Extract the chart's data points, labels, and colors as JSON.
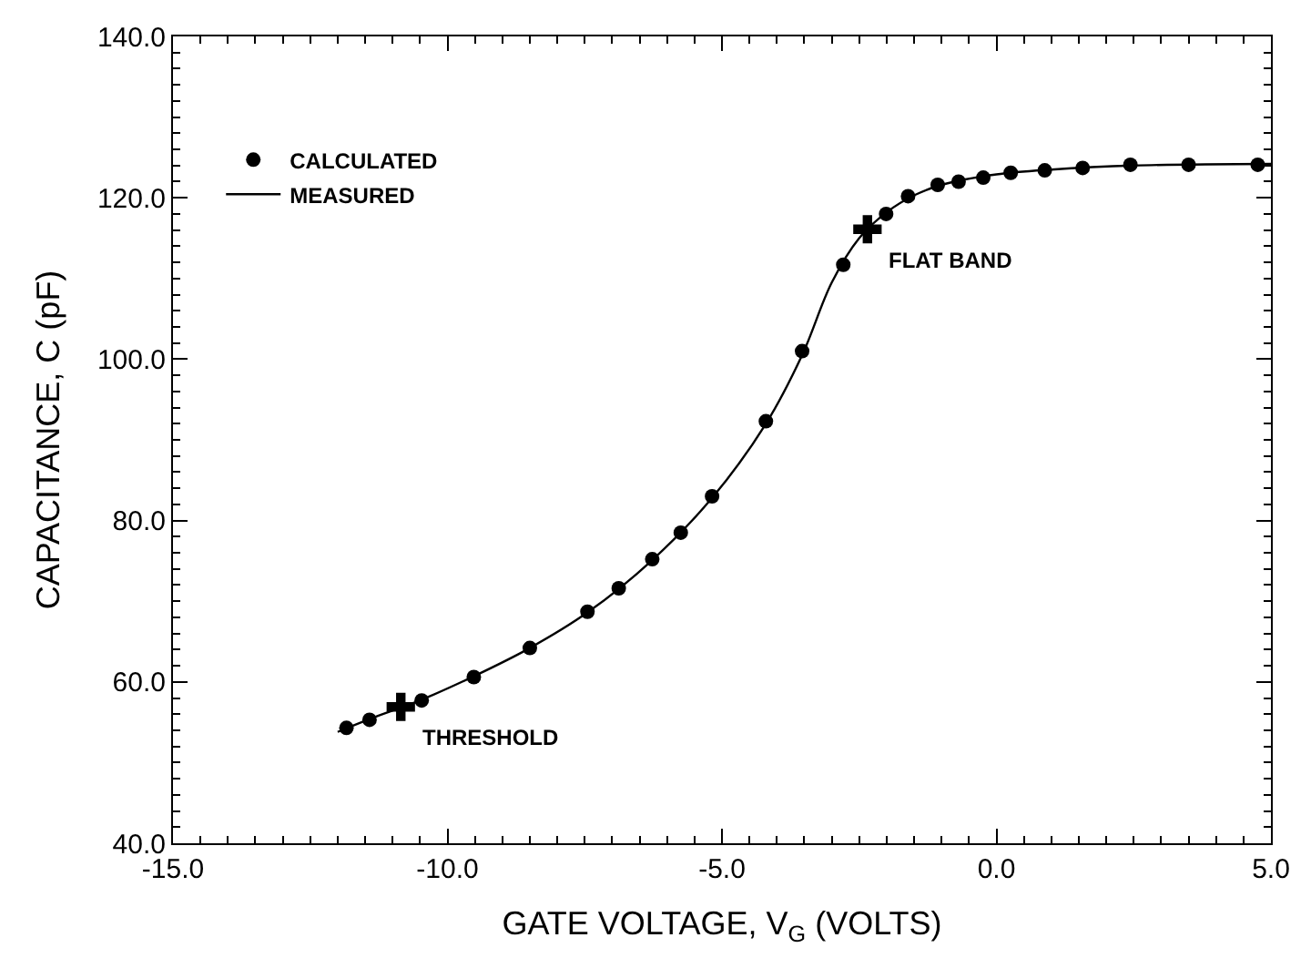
{
  "chart_data": {
    "type": "scatter",
    "xlabel": "GATE VOLTAGE, V$_{G}$ (VOLTS)",
    "ylabel": "CAPACITANCE, C (pF)",
    "xlim": [
      -15,
      5
    ],
    "ylim": [
      40,
      140
    ],
    "xticks": [
      {
        "value": -15,
        "label": "-15.0"
      },
      {
        "value": -10,
        "label": "-10.0"
      },
      {
        "value": -5,
        "label": "-5.0"
      },
      {
        "value": 0,
        "label": "0.0"
      },
      {
        "value": 5,
        "label": "5.0"
      }
    ],
    "yticks": [
      {
        "value": 40,
        "label": "40.0"
      },
      {
        "value": 60,
        "label": "60.0"
      },
      {
        "value": 80,
        "label": "80.0"
      },
      {
        "value": 100,
        "label": "100.0"
      },
      {
        "value": 120,
        "label": "120.0"
      },
      {
        "value": 140,
        "label": "140.0"
      }
    ],
    "grid": false,
    "legend": "top left",
    "marker": "circle",
    "series": [
      {
        "name": "CALCULATED",
        "color": "#000000",
        "x": [
          -11.84,
          -11.42,
          -10.47,
          -9.52,
          -8.5,
          -7.45,
          -6.88,
          -6.27,
          -5.75,
          -5.18,
          -4.2,
          -3.54,
          -2.79,
          -2.01,
          -1.61,
          -1.07,
          -0.69,
          -0.24,
          0.26,
          0.88,
          1.57,
          2.44,
          3.5,
          4.76
        ],
        "values": [
          54.3,
          55.3,
          57.7,
          60.6,
          64.2,
          68.7,
          71.6,
          75.2,
          78.5,
          83.0,
          92.3,
          101.0,
          111.7,
          118.0,
          120.2,
          121.6,
          122.0,
          122.5,
          123.1,
          123.4,
          123.7,
          124.1,
          124.1,
          124.1
        ]
      },
      {
        "name": "MEASURED",
        "type": "line",
        "color": "#000000",
        "line_style": "solid",
        "marker": "none",
        "x": [
          -12.0,
          -11.42,
          -10.47,
          -9.52,
          -8.5,
          -7.45,
          -6.27,
          -5.18,
          -4.2,
          -3.54,
          -3.0,
          -2.5,
          -2.0,
          -1.5,
          -1.0,
          0,
          1,
          2.5,
          5.0
        ],
        "values": [
          53.8,
          55.4,
          57.8,
          60.7,
          64.2,
          68.6,
          75.1,
          82.8,
          92.0,
          100.5,
          109.5,
          115.0,
          118.2,
          120.3,
          121.6,
          122.9,
          123.5,
          124.0,
          124.2
        ]
      },
      {
        "color": "#000000",
        "marker": "cross",
        "x": [
          -10.85,
          -2.35
        ],
        "values": [
          56.9,
          116.1
        ]
      }
    ],
    "annotations": [
      {
        "text": "THRESHOLD",
        "x": -10.85,
        "y": 56.9
      },
      {
        "text": "FLAT BAND",
        "x": -2.35,
        "y": 116.1
      }
    ]
  }
}
